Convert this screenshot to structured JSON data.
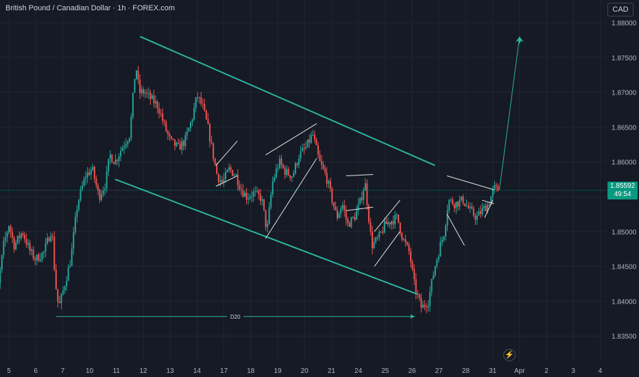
{
  "header": {
    "title": "British Pound / Canadian Dollar · 1h · FOREX.com",
    "currency": "CAD"
  },
  "price_tag": {
    "price": "1.85592",
    "countdown": "49:54"
  },
  "colors": {
    "background": "#161a25",
    "up": "#26a69a",
    "down": "#ef5350",
    "trendline": "#2bb5a0",
    "pattern": "#e6e6e6",
    "price_line": "#089981"
  },
  "chart_data": {
    "type": "candlestick",
    "symbol": "British Pound / Canadian Dollar",
    "interval": "1h",
    "source": "FOREX.com",
    "y_range": [
      1.8335,
      1.8815
    ],
    "y_ticks": [
      "1.88000",
      "1.87500",
      "1.87000",
      "1.86500",
      "1.86000",
      "1.85500",
      "1.85000",
      "1.84500",
      "1.84000",
      "1.83500"
    ],
    "x_ticks": [
      {
        "label": "5",
        "x": 1.0
      },
      {
        "label": "6",
        "x": 2.0
      },
      {
        "label": "7",
        "x": 3.0
      },
      {
        "label": "10",
        "x": 4.0
      },
      {
        "label": "11",
        "x": 5.0
      },
      {
        "label": "12",
        "x": 6.0
      },
      {
        "label": "13",
        "x": 7.0
      },
      {
        "label": "14",
        "x": 8.0
      },
      {
        "label": "17",
        "x": 9.0
      },
      {
        "label": "18",
        "x": 10.0
      },
      {
        "label": "19",
        "x": 11.0
      },
      {
        "label": "20",
        "x": 12.0
      },
      {
        "label": "21",
        "x": 13.0
      },
      {
        "label": "24",
        "x": 14.0
      },
      {
        "label": "25",
        "x": 15.0
      },
      {
        "label": "26",
        "x": 16.0
      },
      {
        "label": "27",
        "x": 17.0
      },
      {
        "label": "28",
        "x": 18.0
      },
      {
        "label": "31",
        "x": 19.0
      },
      {
        "label": "Apr",
        "x": 20.0
      },
      {
        "label": "2",
        "x": 21.0
      },
      {
        "label": "3",
        "x": 22.0
      },
      {
        "label": "4",
        "x": 23.0
      }
    ],
    "close_path": [
      [
        0.22,
        1.8555
      ],
      [
        0.4,
        1.848
      ],
      [
        0.6,
        1.842
      ],
      [
        0.8,
        1.848
      ],
      [
        1.0,
        1.851
      ],
      [
        1.2,
        1.848
      ],
      [
        1.5,
        1.85
      ],
      [
        1.8,
        1.847
      ],
      [
        2.0,
        1.846
      ],
      [
        2.3,
        1.847
      ],
      [
        2.6,
        1.8505
      ],
      [
        2.72,
        1.843
      ],
      [
        2.85,
        1.839
      ],
      [
        3.05,
        1.842
      ],
      [
        3.3,
        1.846
      ],
      [
        3.55,
        1.854
      ],
      [
        3.85,
        1.858
      ],
      [
        4.1,
        1.859
      ],
      [
        4.35,
        1.855
      ],
      [
        4.6,
        1.857
      ],
      [
        4.75,
        1.861
      ],
      [
        4.95,
        1.86
      ],
      [
        5.2,
        1.862
      ],
      [
        5.5,
        1.864
      ],
      [
        5.72,
        1.874
      ],
      [
        5.85,
        1.87
      ],
      [
        6.05,
        1.87
      ],
      [
        6.3,
        1.869
      ],
      [
        6.55,
        1.868
      ],
      [
        6.8,
        1.865
      ],
      [
        7.0,
        1.863
      ],
      [
        7.3,
        1.862
      ],
      [
        7.55,
        1.863
      ],
      [
        7.8,
        1.866
      ],
      [
        8.0,
        1.8695
      ],
      [
        8.2,
        1.868
      ],
      [
        8.4,
        1.865
      ],
      [
        8.6,
        1.861
      ],
      [
        8.75,
        1.858
      ],
      [
        8.95,
        1.857
      ],
      [
        9.2,
        1.859
      ],
      [
        9.45,
        1.858
      ],
      [
        9.65,
        1.856
      ],
      [
        9.85,
        1.855
      ],
      [
        10.1,
        1.8555
      ],
      [
        10.4,
        1.8548
      ],
      [
        10.6,
        1.85
      ],
      [
        10.8,
        1.857
      ],
      [
        11.05,
        1.86
      ],
      [
        11.3,
        1.8585
      ],
      [
        11.55,
        1.858
      ],
      [
        11.8,
        1.861
      ],
      [
        12.05,
        1.862
      ],
      [
        12.3,
        1.864
      ],
      [
        12.55,
        1.86
      ],
      [
        12.8,
        1.858
      ],
      [
        13.0,
        1.855
      ],
      [
        13.2,
        1.852
      ],
      [
        13.4,
        1.854
      ],
      [
        13.6,
        1.851
      ],
      [
        13.85,
        1.852
      ],
      [
        14.05,
        1.854
      ],
      [
        14.25,
        1.857
      ],
      [
        14.5,
        1.848
      ],
      [
        14.75,
        1.849
      ],
      [
        15.0,
        1.851
      ],
      [
        15.2,
        1.8515
      ],
      [
        15.45,
        1.852
      ],
      [
        15.65,
        1.849
      ],
      [
        15.9,
        1.847
      ],
      [
        16.1,
        1.842
      ],
      [
        16.35,
        1.839
      ],
      [
        16.6,
        1.84
      ],
      [
        16.85,
        1.845
      ],
      [
        17.05,
        1.848
      ],
      [
        17.2,
        1.85
      ],
      [
        17.35,
        1.8545
      ],
      [
        17.6,
        1.854
      ],
      [
        17.9,
        1.8545
      ],
      [
        18.15,
        1.853
      ],
      [
        18.4,
        1.852
      ],
      [
        18.6,
        1.853
      ],
      [
        18.85,
        1.854
      ],
      [
        19.05,
        1.8562
      ],
      [
        19.25,
        1.8559
      ]
    ],
    "annotations": {
      "channel_upper": [
        [
          5.88,
          1.878
        ],
        [
          16.85,
          1.8595
        ]
      ],
      "channel_lower": [
        [
          4.95,
          1.8575
        ],
        [
          16.2,
          1.841
        ]
      ],
      "projection_arrow": [
        [
          19.25,
          1.856
        ],
        [
          20.0,
          1.878
        ]
      ],
      "measure": {
        "label": "D20",
        "from": [
          2.75,
          1.8378
        ],
        "to": [
          16.1,
          1.8378
        ]
      },
      "flag_lines": [
        [
          [
            8.7,
            1.8595
          ],
          [
            9.5,
            1.863
          ]
        ],
        [
          [
            8.7,
            1.8565
          ],
          [
            9.5,
            1.858
          ]
        ],
        [
          [
            10.55,
            1.861
          ],
          [
            12.45,
            1.8655
          ]
        ],
        [
          [
            10.55,
            1.849
          ],
          [
            12.45,
            1.8605
          ]
        ],
        [
          [
            13.55,
            1.858
          ],
          [
            14.55,
            1.8582
          ]
        ],
        [
          [
            13.55,
            1.853
          ],
          [
            14.55,
            1.8535
          ]
        ],
        [
          [
            14.6,
            1.85
          ],
          [
            15.55,
            1.8545
          ]
        ],
        [
          [
            14.6,
            1.845
          ],
          [
            15.55,
            1.85
          ]
        ],
        [
          [
            17.3,
            1.858
          ],
          [
            19.05,
            1.856
          ]
        ],
        [
          [
            17.3,
            1.8525
          ],
          [
            17.95,
            1.848
          ]
        ],
        [
          [
            18.6,
            1.8545
          ],
          [
            19.05,
            1.854
          ]
        ],
        [
          [
            18.7,
            1.852
          ],
          [
            19.0,
            1.8545
          ]
        ]
      ]
    }
  }
}
